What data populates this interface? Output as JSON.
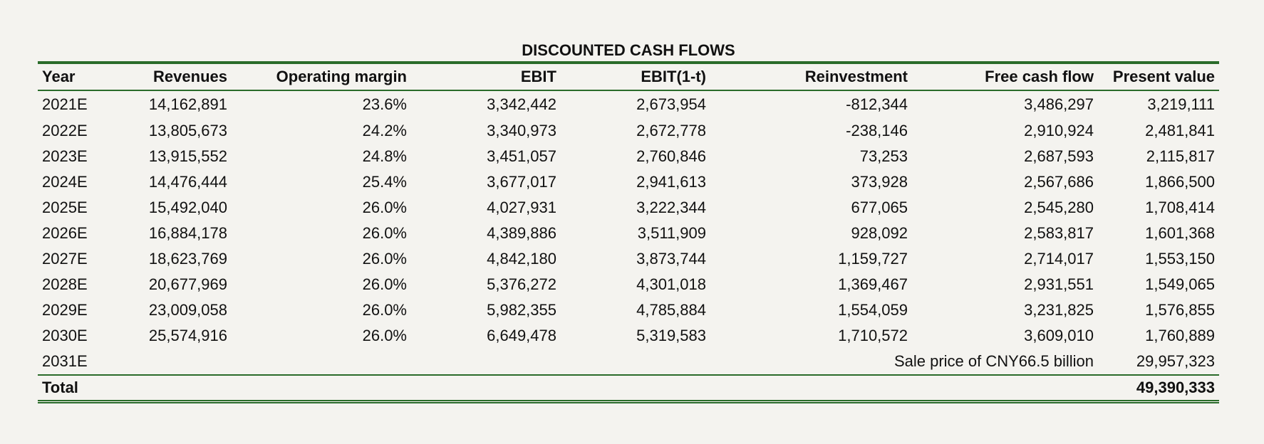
{
  "title": "DISCOUNTED CASH FLOWS",
  "columns": [
    "Year",
    "Revenues",
    "Operating margin",
    "EBIT",
    "EBIT(1-t)",
    "Reinvestment",
    "Free cash flow",
    "Present value"
  ],
  "rows": [
    [
      "2021E",
      "14,162,891",
      "23.6%",
      "3,342,442",
      "2,673,954",
      "-812,344",
      "3,486,297",
      "3,219,111"
    ],
    [
      "2022E",
      "13,805,673",
      "24.2%",
      "3,340,973",
      "2,672,778",
      "-238,146",
      "2,910,924",
      "2,481,841"
    ],
    [
      "2023E",
      "13,915,552",
      "24.8%",
      "3,451,057",
      "2,760,846",
      "73,253",
      "2,687,593",
      "2,115,817"
    ],
    [
      "2024E",
      "14,476,444",
      "25.4%",
      "3,677,017",
      "2,941,613",
      "373,928",
      "2,567,686",
      "1,866,500"
    ],
    [
      "2025E",
      "15,492,040",
      "26.0%",
      "4,027,931",
      "3,222,344",
      "677,065",
      "2,545,280",
      "1,708,414"
    ],
    [
      "2026E",
      "16,884,178",
      "26.0%",
      "4,389,886",
      "3,511,909",
      "928,092",
      "2,583,817",
      "1,601,368"
    ],
    [
      "2027E",
      "18,623,769",
      "26.0%",
      "4,842,180",
      "3,873,744",
      "1,159,727",
      "2,714,017",
      "1,553,150"
    ],
    [
      "2028E",
      "20,677,969",
      "26.0%",
      "5,376,272",
      "4,301,018",
      "1,369,467",
      "2,931,551",
      "1,549,065"
    ],
    [
      "2029E",
      "23,009,058",
      "26.0%",
      "5,982,355",
      "4,785,884",
      "1,554,059",
      "3,231,825",
      "1,576,855"
    ],
    [
      "2030E",
      "25,574,916",
      "26.0%",
      "6,649,478",
      "5,319,583",
      "1,710,572",
      "3,609,010",
      "1,760,889"
    ]
  ],
  "sale_row": {
    "year": "2031E",
    "label": "Sale price of CNY66.5 billion",
    "present_value": "29,957,323"
  },
  "total_row": {
    "label": "Total",
    "present_value": "49,390,333"
  },
  "colors": {
    "background": "#f4f3ef",
    "rule": "#2a6b2a"
  }
}
